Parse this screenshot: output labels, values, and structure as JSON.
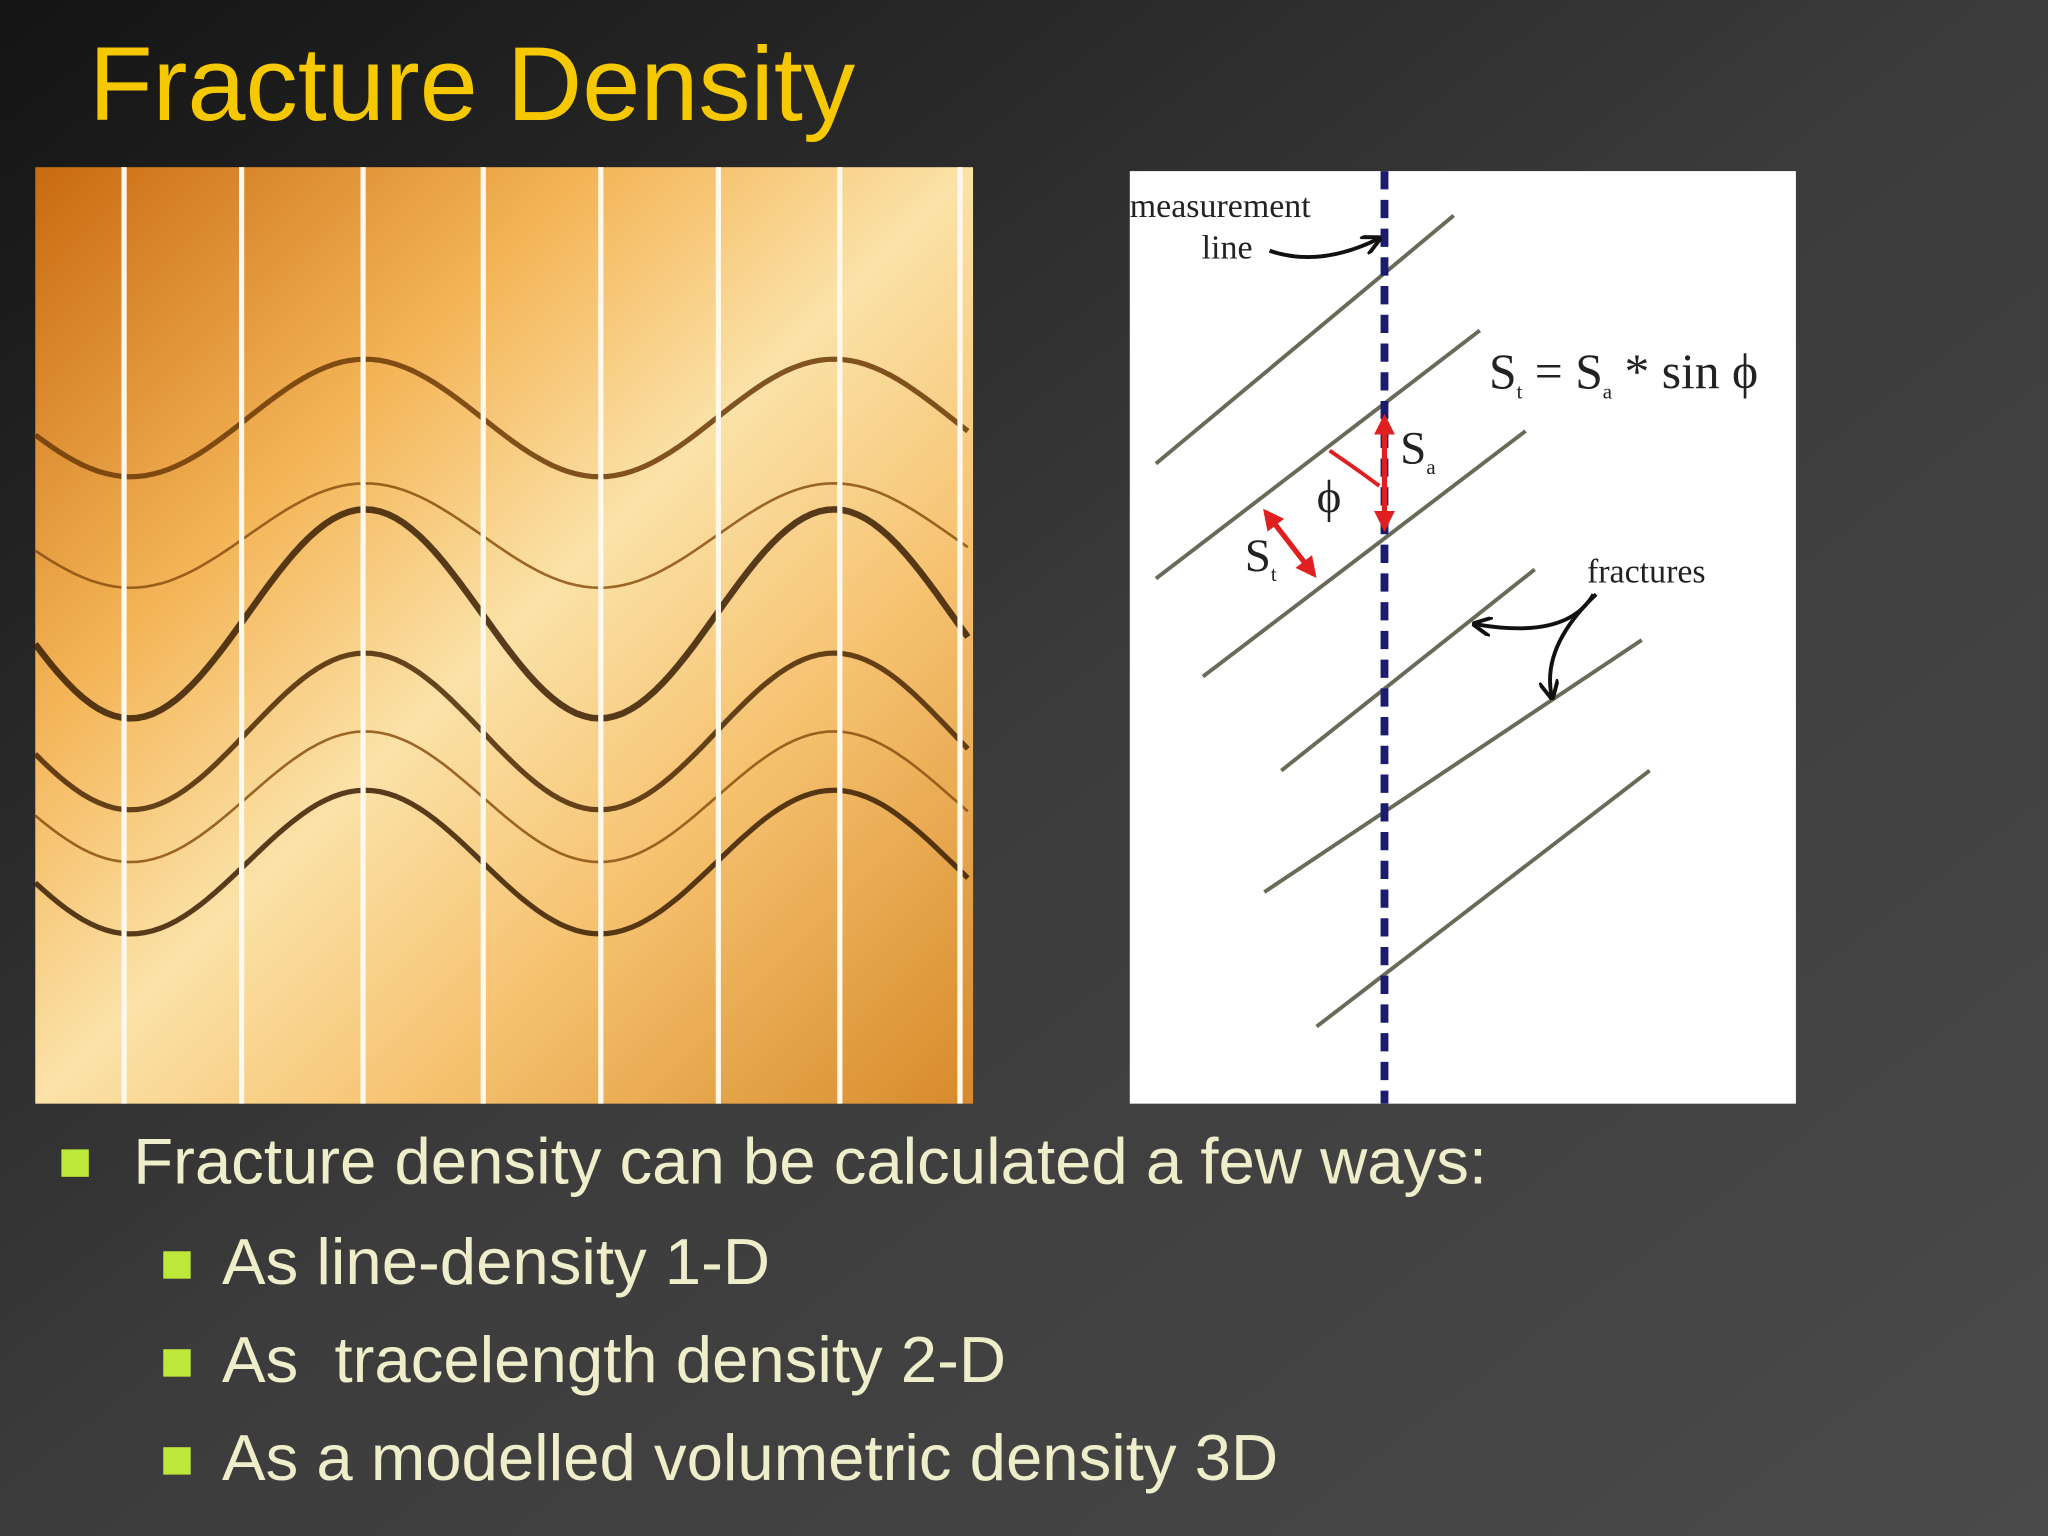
{
  "title": "Fracture Density",
  "diagram": {
    "measurement_label": [
      "measurement",
      "line"
    ],
    "formula": {
      "lhs": "S",
      "lhs_sub": "t",
      "eq": " = S",
      "rhs_sub": "a",
      "tail": " * sin ϕ"
    },
    "sa": {
      "text": "S",
      "sub": "a"
    },
    "phi": "ϕ",
    "st": {
      "text": "S",
      "sub": "t"
    },
    "fractures": "fractures"
  },
  "bullets": {
    "main": "Fracture density can be calculated a few ways:",
    "sub": [
      "As line-density 1-D",
      "As  tracelength density 2-D",
      "As a modelled volumetric density 3D"
    ]
  }
}
